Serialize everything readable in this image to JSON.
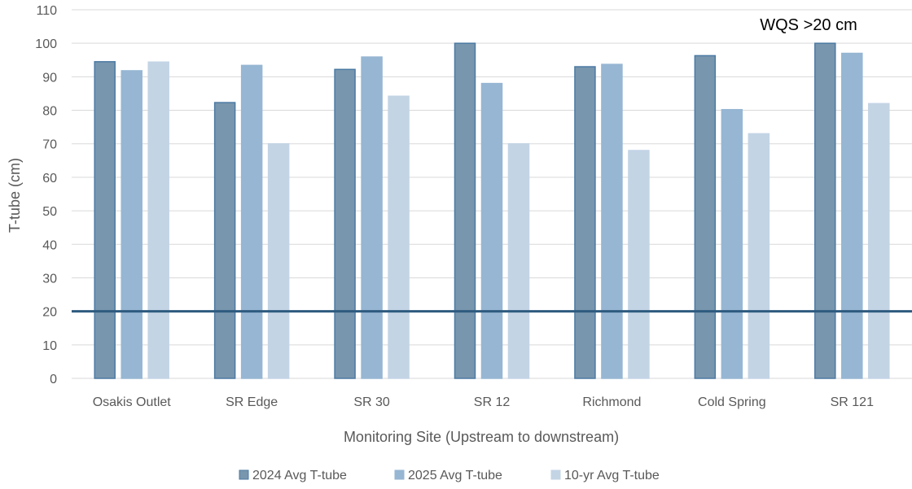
{
  "chart_data": {
    "type": "bar",
    "title": "",
    "xlabel": "Monitoring Site (Upstream to downstream)",
    "ylabel": "T-tube (cm)",
    "ylim": [
      0,
      110
    ],
    "yticks": [
      0,
      10,
      20,
      30,
      40,
      50,
      60,
      70,
      80,
      90,
      100,
      110
    ],
    "grid": true,
    "legend_position": "bottom",
    "categories": [
      "Osakis Outlet",
      "SR Edge",
      "SR 30",
      "SR 12",
      "Richmond",
      "Cold Spring",
      "SR 121"
    ],
    "series": [
      {
        "name": "2024 Avg T-tube",
        "color": "#7896ae",
        "edge": "#4c7aa3",
        "values": [
          94.5,
          82.3,
          92.2,
          100,
          93,
          96.3,
          100
        ]
      },
      {
        "name": "2025 Avg T-tube",
        "color": "#96b6d3",
        "edge": "#96b6d3",
        "values": [
          91.8,
          93.4,
          95.9,
          88,
          93.7,
          80.2,
          97
        ]
      },
      {
        "name": "10-yr Avg T-tube",
        "color": "#c3d4e5",
        "edge": "#c3d4e5",
        "values": [
          94.4,
          70,
          84.2,
          70,
          68,
          73,
          82
        ]
      }
    ],
    "reference_line": {
      "value": 20,
      "label": "WQS >20 cm",
      "color": "#2e5b7f"
    }
  }
}
